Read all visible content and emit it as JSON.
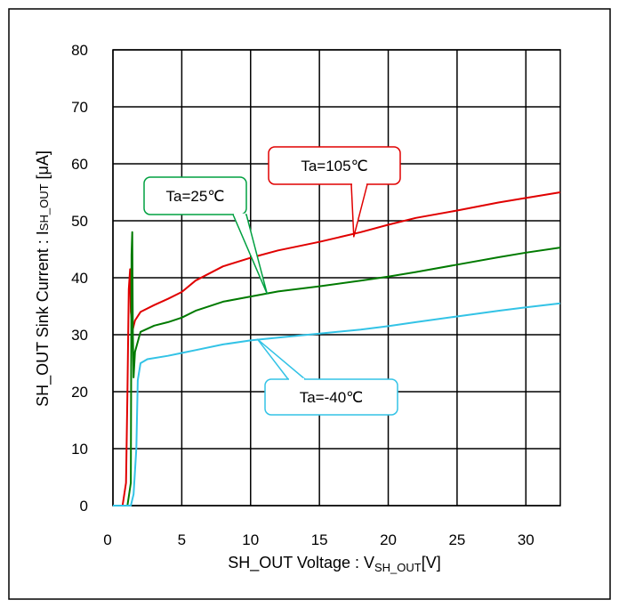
{
  "chart_data": {
    "type": "line",
    "xlabel_main": "SH_OUT Voltage : V",
    "xlabel_sub": "SH_OUT",
    "xlabel_unit": "[V]",
    "ylabel_main": "SH_OUT Sink Current : I",
    "ylabel_sub": "SH_OUT",
    "ylabel_unit": " [μA]",
    "xlim": [
      0,
      32.5
    ],
    "ylim": [
      0,
      80
    ],
    "xticks": [
      "0",
      "5",
      "10",
      "15",
      "20",
      "25",
      "30"
    ],
    "yticks": [
      "0",
      "10",
      "20",
      "30",
      "40",
      "50",
      "60",
      "70",
      "80"
    ],
    "grid": true,
    "series": [
      {
        "name": "Ta=105°C",
        "color": "#e00000",
        "points": [
          [
            0,
            0
          ],
          [
            0.7,
            0
          ],
          [
            0.95,
            4
          ],
          [
            1.05,
            20
          ],
          [
            1.15,
            38
          ],
          [
            1.25,
            41.5
          ],
          [
            1.3,
            34
          ],
          [
            1.45,
            31
          ],
          [
            1.6,
            32.5
          ],
          [
            2,
            34
          ],
          [
            3,
            35.2
          ],
          [
            4,
            36.3
          ],
          [
            5,
            37.5
          ],
          [
            6,
            39.5
          ],
          [
            8,
            42
          ],
          [
            10,
            43.5
          ],
          [
            12,
            44.8
          ],
          [
            15,
            46.3
          ],
          [
            18,
            48
          ],
          [
            20,
            49.3
          ],
          [
            22,
            50.5
          ],
          [
            25,
            51.8
          ],
          [
            28,
            53.2
          ],
          [
            30,
            54
          ],
          [
            32.5,
            55
          ]
        ]
      },
      {
        "name": "Ta=25°C",
        "color": "#007a00",
        "points": [
          [
            0,
            0
          ],
          [
            1.05,
            0
          ],
          [
            1.3,
            4
          ],
          [
            1.35,
            44
          ],
          [
            1.4,
            48
          ],
          [
            1.45,
            30
          ],
          [
            1.5,
            22.5
          ],
          [
            1.6,
            27
          ],
          [
            2,
            30.5
          ],
          [
            3,
            31.6
          ],
          [
            4,
            32.2
          ],
          [
            5,
            33
          ],
          [
            6,
            34.2
          ],
          [
            8,
            35.8
          ],
          [
            10,
            36.7
          ],
          [
            12,
            37.6
          ],
          [
            15,
            38.5
          ],
          [
            18,
            39.5
          ],
          [
            20,
            40.2
          ],
          [
            22,
            41
          ],
          [
            25,
            42.3
          ],
          [
            28,
            43.6
          ],
          [
            30,
            44.4
          ],
          [
            32.5,
            45.3
          ]
        ]
      },
      {
        "name": "Ta=-40°C",
        "color": "#33c3e6",
        "points": [
          [
            0,
            0
          ],
          [
            1.3,
            0
          ],
          [
            1.5,
            2
          ],
          [
            1.7,
            10
          ],
          [
            1.8,
            22
          ],
          [
            2,
            25
          ],
          [
            2.5,
            25.7
          ],
          [
            4,
            26.3
          ],
          [
            5,
            26.8
          ],
          [
            6,
            27.3
          ],
          [
            8,
            28.3
          ],
          [
            10,
            29
          ],
          [
            12,
            29.5
          ],
          [
            15,
            30.2
          ],
          [
            18,
            30.9
          ],
          [
            20,
            31.5
          ],
          [
            22,
            32.2
          ],
          [
            25,
            33.2
          ],
          [
            28,
            34.2
          ],
          [
            30,
            34.8
          ],
          [
            32.5,
            35.5
          ]
        ]
      }
    ],
    "annotations": [
      {
        "series": 0,
        "text": "Ta=105℃",
        "target": [
          17.5,
          47.2
        ],
        "color": "#e00000"
      },
      {
        "series": 1,
        "text": "Ta=25℃",
        "target": [
          11.2,
          37.2
        ],
        "color": "#00a040"
      },
      {
        "series": 2,
        "text": "Ta=-40℃",
        "target": [
          10.5,
          29.2
        ],
        "color": "#33c3e6"
      }
    ]
  }
}
